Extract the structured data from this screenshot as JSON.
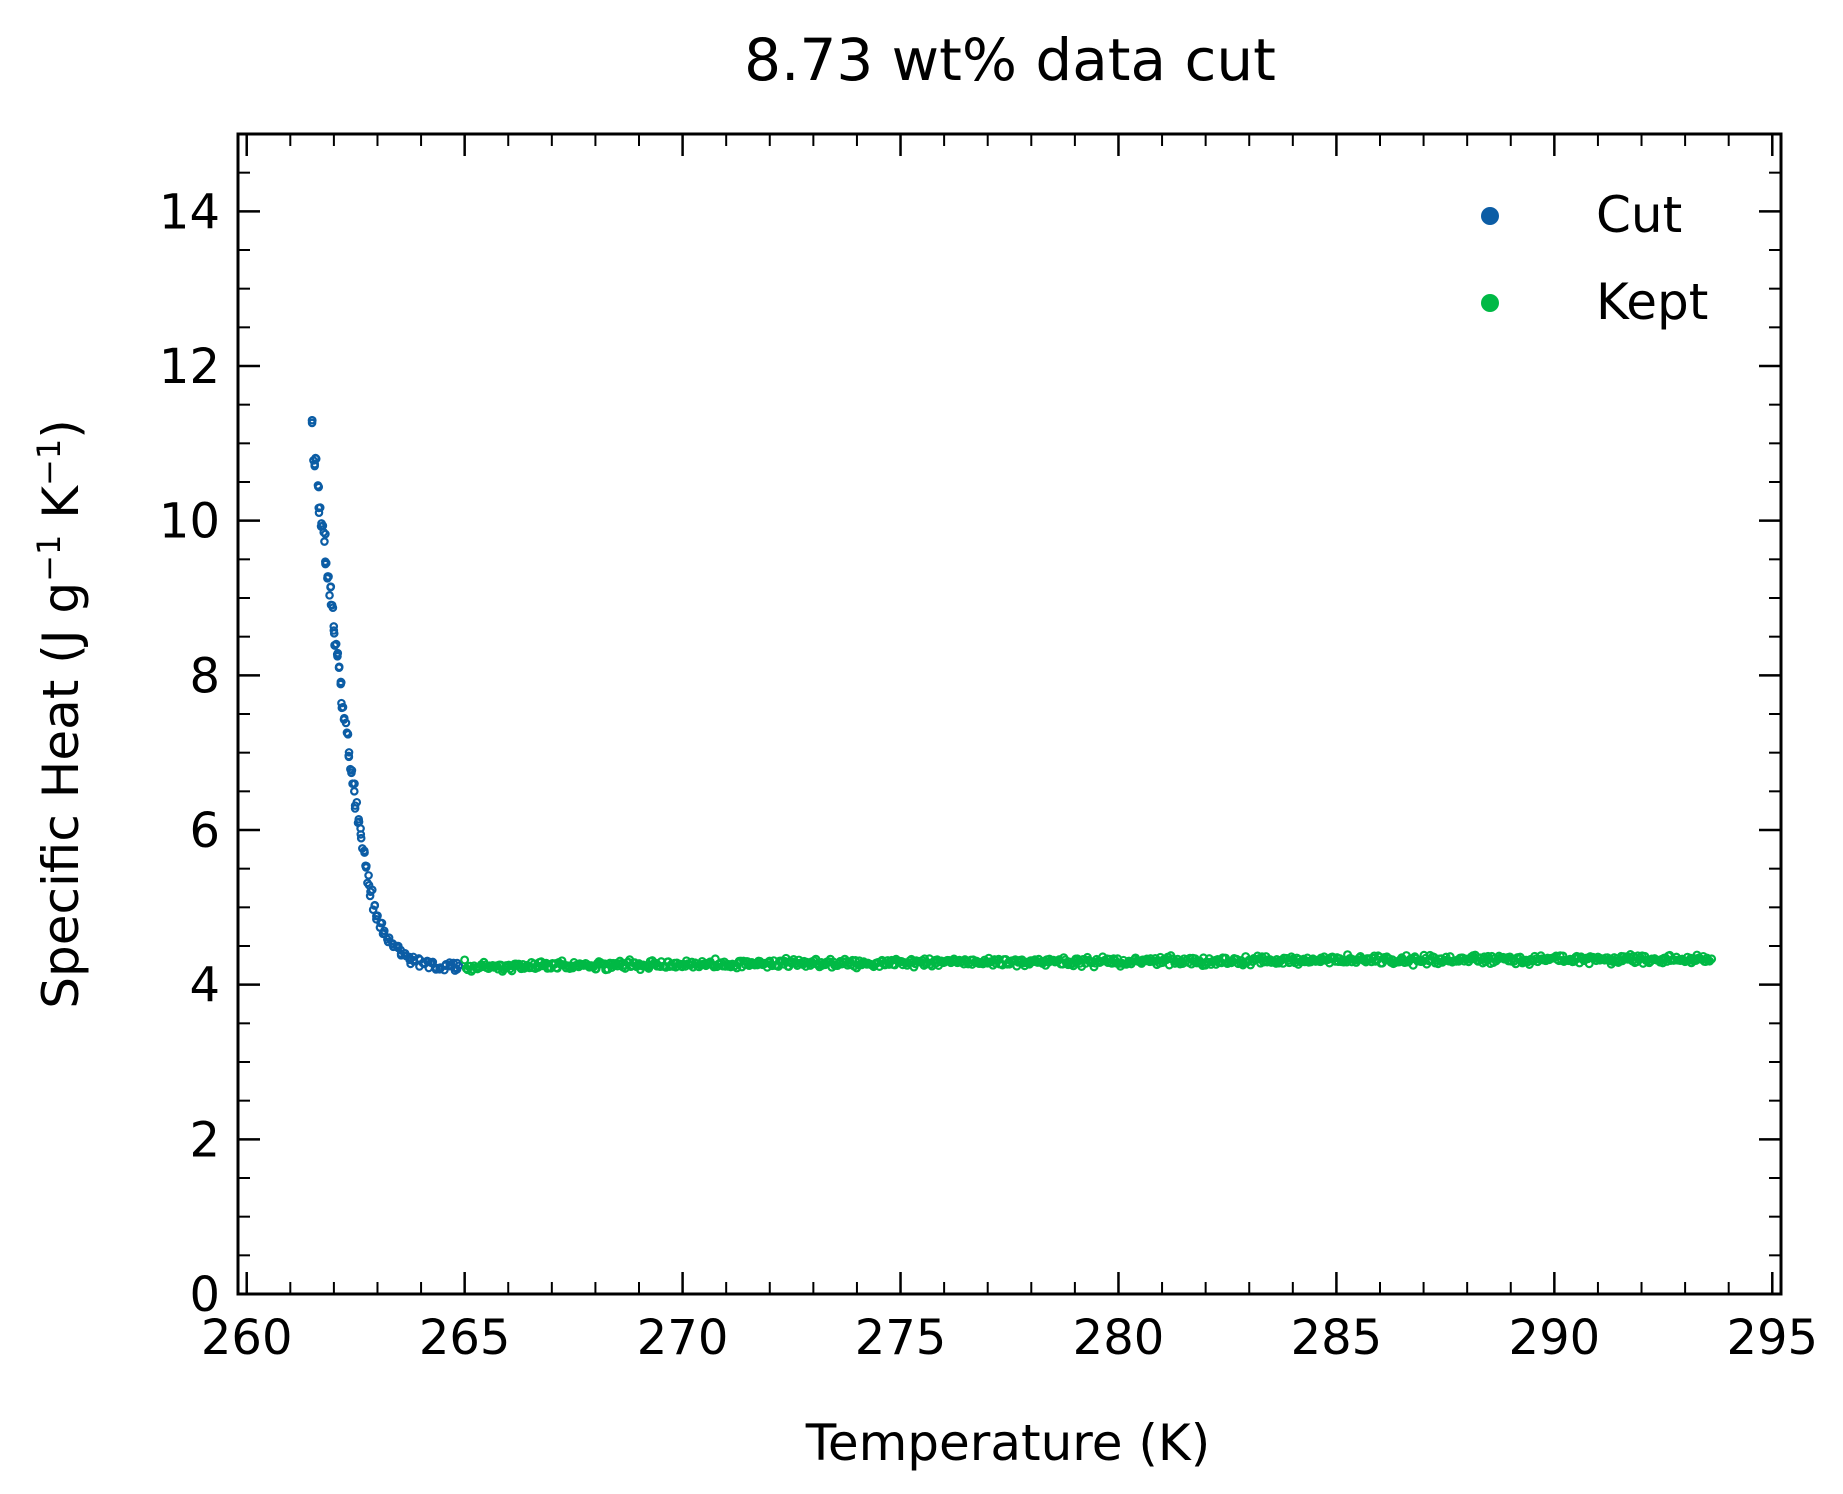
{
  "chart_data": {
    "type": "scatter",
    "title": "8.73 wt% data cut",
    "xlabel": "Temperature (K)",
    "ylabel": {
      "main": "Specific Heat (J g",
      "sup1": "−1",
      "mid": " K",
      "sup2": "−1",
      "end": ")"
    },
    "xlim": [
      259.8,
      295.2
    ],
    "ylim": [
      0,
      15
    ],
    "xticks": [
      260,
      265,
      270,
      275,
      280,
      285,
      290,
      295
    ],
    "xtick_labels": [
      "260",
      "265",
      "270",
      "275",
      "280",
      "285",
      "290",
      "295"
    ],
    "yticks": [
      0,
      2,
      4,
      6,
      8,
      10,
      12,
      14
    ],
    "ytick_labels": [
      "0",
      "2",
      "4",
      "6",
      "8",
      "10",
      "12",
      "14"
    ],
    "grid": false,
    "legend_position": "top-right",
    "series": [
      {
        "name": "Cut",
        "color": "#0c5da5",
        "x_range": [
          261.5,
          264.9
        ],
        "points": [
          [
            261.5,
            11.3
          ],
          [
            261.55,
            10.75
          ],
          [
            261.6,
            10.8
          ],
          [
            261.65,
            10.45
          ],
          [
            261.68,
            10.15
          ],
          [
            261.72,
            9.95
          ],
          [
            261.78,
            9.78
          ],
          [
            261.82,
            9.45
          ],
          [
            261.88,
            9.25
          ],
          [
            261.92,
            9.12
          ],
          [
            261.96,
            8.95
          ],
          [
            262.0,
            8.6
          ],
          [
            262.04,
            8.42
          ],
          [
            262.08,
            8.25
          ],
          [
            262.12,
            8.05
          ],
          [
            262.16,
            7.88
          ],
          [
            262.2,
            7.62
          ],
          [
            262.25,
            7.42
          ],
          [
            262.3,
            7.28
          ],
          [
            262.35,
            7.0
          ],
          [
            262.4,
            6.78
          ],
          [
            262.45,
            6.55
          ],
          [
            262.5,
            6.32
          ],
          [
            262.55,
            6.12
          ],
          [
            262.62,
            5.95
          ],
          [
            262.68,
            5.75
          ],
          [
            262.74,
            5.55
          ],
          [
            262.8,
            5.35
          ],
          [
            262.86,
            5.18
          ],
          [
            262.93,
            5.02
          ],
          [
            263.0,
            4.9
          ],
          [
            263.08,
            4.78
          ],
          [
            263.15,
            4.68
          ],
          [
            263.25,
            4.6
          ],
          [
            263.35,
            4.53
          ],
          [
            263.45,
            4.47
          ],
          [
            263.55,
            4.42
          ],
          [
            263.65,
            4.38
          ],
          [
            263.75,
            4.35
          ],
          [
            263.85,
            4.33
          ],
          [
            263.95,
            4.3
          ],
          [
            264.05,
            4.28
          ],
          [
            264.15,
            4.27
          ],
          [
            264.25,
            4.26
          ],
          [
            264.35,
            4.25
          ],
          [
            264.45,
            4.24
          ],
          [
            264.55,
            4.24
          ],
          [
            264.65,
            4.23
          ],
          [
            264.75,
            4.23
          ],
          [
            264.85,
            4.22
          ]
        ]
      },
      {
        "name": "Kept",
        "color": "#00b945",
        "x_range": [
          265.0,
          293.6
        ],
        "trend": [
          [
            265.0,
            4.23
          ],
          [
            270.0,
            4.27
          ],
          [
            280.0,
            4.3
          ],
          [
            290.0,
            4.33
          ],
          [
            293.6,
            4.33
          ]
        ],
        "noise": 0.06
      }
    ]
  }
}
